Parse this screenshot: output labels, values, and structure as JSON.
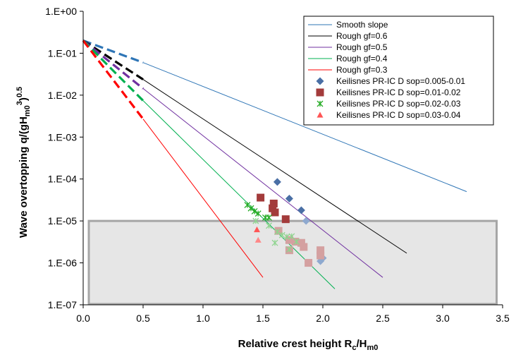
{
  "chart_data": {
    "type": "scatter",
    "xlabel": "Relative crest height R",
    "xlabel_sub1": "c",
    "xlabel_mid": "/H",
    "xlabel_sub2": "m0",
    "ylabel_main": "Wave overtopping q/(gH",
    "ylabel_sub": "m0",
    "ylabel_sup": "3",
    "ylabel_close": ")",
    "ylabel_sup2": "0.5",
    "x_scale": "linear",
    "y_scale": "log",
    "xlim": [
      0,
      3.5
    ],
    "ylim": [
      1e-07,
      1
    ],
    "x_ticks": [
      "0.0",
      "0.5",
      "1.0",
      "1.5",
      "2.0",
      "2.5",
      "3.0",
      "3.5"
    ],
    "y_ticks": [
      "1.E-07",
      "1.E-06",
      "1.E-05",
      "1.E-04",
      "1.E-03",
      "1.E-02",
      "1.E-01",
      "1.E+00"
    ],
    "grid": false,
    "legend_position": "top-right",
    "shaded_region": {
      "x": [
        0,
        3.45
      ],
      "y": [
        1e-07,
        1e-05
      ],
      "fill": "#e6e6e6",
      "stroke": "#a6a6a6"
    },
    "lines": [
      {
        "name": "Smooth slope",
        "color": "#2e75b6",
        "dashed": {
          "x": [
            0,
            0.5
          ],
          "y": [
            0.2,
            0.0599
          ]
        },
        "solid": {
          "x": [
            0.5,
            3.2
          ],
          "y": [
            0.0599,
            5e-05
          ]
        }
      },
      {
        "name": "Rough gf=0.6",
        "color": "#000000",
        "dashed": {
          "x": [
            0,
            0.5
          ],
          "y": [
            0.2,
            0.0237
          ]
        },
        "solid": {
          "x": [
            0.5,
            2.7
          ],
          "y": [
            0.0237,
            1.7e-06
          ]
        }
      },
      {
        "name": "Rough gf=0.5",
        "color": "#7030a0",
        "dashed": {
          "x": [
            0,
            0.5
          ],
          "y": [
            0.2,
            0.0144
          ]
        },
        "solid": {
          "x": [
            0.5,
            2.5
          ],
          "y": [
            0.0144,
            4.5e-07
          ]
        }
      },
      {
        "name": "Rough gf=0.4",
        "color": "#00b050",
        "dashed": {
          "x": [
            0,
            0.5
          ],
          "y": [
            0.2,
            0.0074
          ]
        },
        "solid": {
          "x": [
            0.5,
            2.1
          ],
          "y": [
            0.0074,
            2.4e-07
          ]
        }
      },
      {
        "name": "Rough gf=0.3",
        "color": "#ff0000",
        "dashed": {
          "x": [
            0,
            0.5
          ],
          "y": [
            0.2,
            0.0027
          ]
        },
        "solid": {
          "x": [
            0.5,
            1.5
          ],
          "y": [
            0.0027,
            4.5e-07
          ]
        }
      }
    ],
    "series": [
      {
        "name": "Keilisnes PR-IC D sop=0.005-0.01",
        "marker": "diamond",
        "points": [
          {
            "x": 1.62,
            "y": 8.5e-05,
            "color": "#4a6fa5"
          },
          {
            "x": 1.72,
            "y": 3.4e-05,
            "color": "#4a6fa5"
          },
          {
            "x": 1.82,
            "y": 1.8e-05,
            "color": "#4a6fa5"
          },
          {
            "x": 1.86,
            "y": 1e-05,
            "color": "#8ea9cf"
          },
          {
            "x": 1.98,
            "y": 1.1e-06,
            "color": "#8ea9cf"
          },
          {
            "x": 2.0,
            "y": 1.3e-06,
            "color": "#8ea9cf"
          }
        ]
      },
      {
        "name": "Keilisnes PR-IC D sop=0.01-0.02",
        "marker": "square",
        "points": [
          {
            "x": 1.48,
            "y": 3.6e-05,
            "color": "#a33b3b"
          },
          {
            "x": 1.59,
            "y": 2.6e-05,
            "color": "#a33b3b"
          },
          {
            "x": 1.58,
            "y": 2e-05,
            "color": "#a33b3b"
          },
          {
            "x": 1.6,
            "y": 1.6e-05,
            "color": "#a33b3b"
          },
          {
            "x": 1.69,
            "y": 1.1e-05,
            "color": "#a33b3b"
          },
          {
            "x": 1.63,
            "y": 5.8e-06,
            "color": "#d4a0a0"
          },
          {
            "x": 1.72,
            "y": 3.5e-06,
            "color": "#d4a0a0"
          },
          {
            "x": 1.72,
            "y": 2e-06,
            "color": "#d4a0a0"
          },
          {
            "x": 1.77,
            "y": 3.2e-06,
            "color": "#d4a0a0"
          },
          {
            "x": 1.82,
            "y": 3e-06,
            "color": "#d4a0a0"
          },
          {
            "x": 1.84,
            "y": 2.4e-06,
            "color": "#d4a0a0"
          },
          {
            "x": 1.88,
            "y": 1e-06,
            "color": "#d4a0a0"
          },
          {
            "x": 1.98,
            "y": 2e-06,
            "color": "#d4a0a0"
          },
          {
            "x": 1.98,
            "y": 1.5e-06,
            "color": "#d4a0a0"
          }
        ]
      },
      {
        "name": "Keilisnes PR-IC D sop=0.02-0.03",
        "marker": "asterisk",
        "points": [
          {
            "x": 1.37,
            "y": 2.4e-05,
            "color": "#22aa22"
          },
          {
            "x": 1.4,
            "y": 2e-05,
            "color": "#22aa22"
          },
          {
            "x": 1.43,
            "y": 1.7e-05,
            "color": "#22aa22"
          },
          {
            "x": 1.46,
            "y": 1.5e-05,
            "color": "#22aa22"
          },
          {
            "x": 1.52,
            "y": 1.2e-05,
            "color": "#22aa22"
          },
          {
            "x": 1.55,
            "y": 1.2e-05,
            "color": "#22aa22"
          },
          {
            "x": 1.44,
            "y": 1e-05,
            "color": "#8fd48f"
          },
          {
            "x": 1.55,
            "y": 7.7e-06,
            "color": "#8fd48f"
          },
          {
            "x": 1.62,
            "y": 5.5e-06,
            "color": "#8fd48f"
          },
          {
            "x": 1.66,
            "y": 4.6e-06,
            "color": "#8fd48f"
          },
          {
            "x": 1.7,
            "y": 4.2e-06,
            "color": "#8fd48f"
          },
          {
            "x": 1.74,
            "y": 4.3e-06,
            "color": "#8fd48f"
          },
          {
            "x": 1.6,
            "y": 3e-06,
            "color": "#8fd48f"
          },
          {
            "x": 1.78,
            "y": 3.2e-06,
            "color": "#8fd48f"
          },
          {
            "x": 1.72,
            "y": 2.1e-06,
            "color": "#8fd48f"
          }
        ]
      },
      {
        "name": "Keilisnes PR-IC D sop=0.03-0.04",
        "marker": "triangle",
        "points": [
          {
            "x": 1.45,
            "y": 6.2e-06,
            "color": "#ff5555"
          },
          {
            "x": 1.46,
            "y": 3.5e-06,
            "color": "#ff8888"
          }
        ]
      }
    ]
  }
}
